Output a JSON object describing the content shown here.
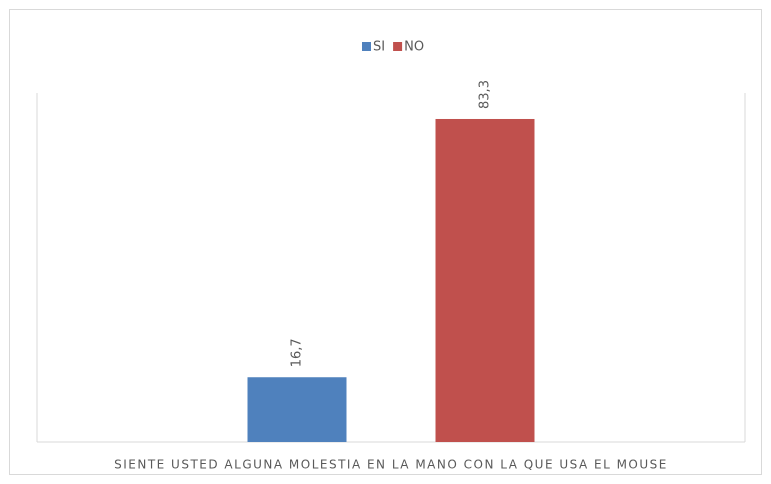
{
  "chart_data": {
    "type": "bar",
    "categories": [
      "SIENTE USTED ALGUNA MOLESTIA EN LA MANO CON LA QUE USA EL MOUSE"
    ],
    "series": [
      {
        "name": "SI",
        "color": "#4f81bd",
        "values": [
          16.7
        ],
        "value_labels": [
          "16,7"
        ]
      },
      {
        "name": "NO",
        "color": "#c0504d",
        "values": [
          83.3
        ],
        "value_labels": [
          "83,3"
        ]
      }
    ],
    "ylim": [
      0,
      90
    ],
    "legend": "top"
  }
}
